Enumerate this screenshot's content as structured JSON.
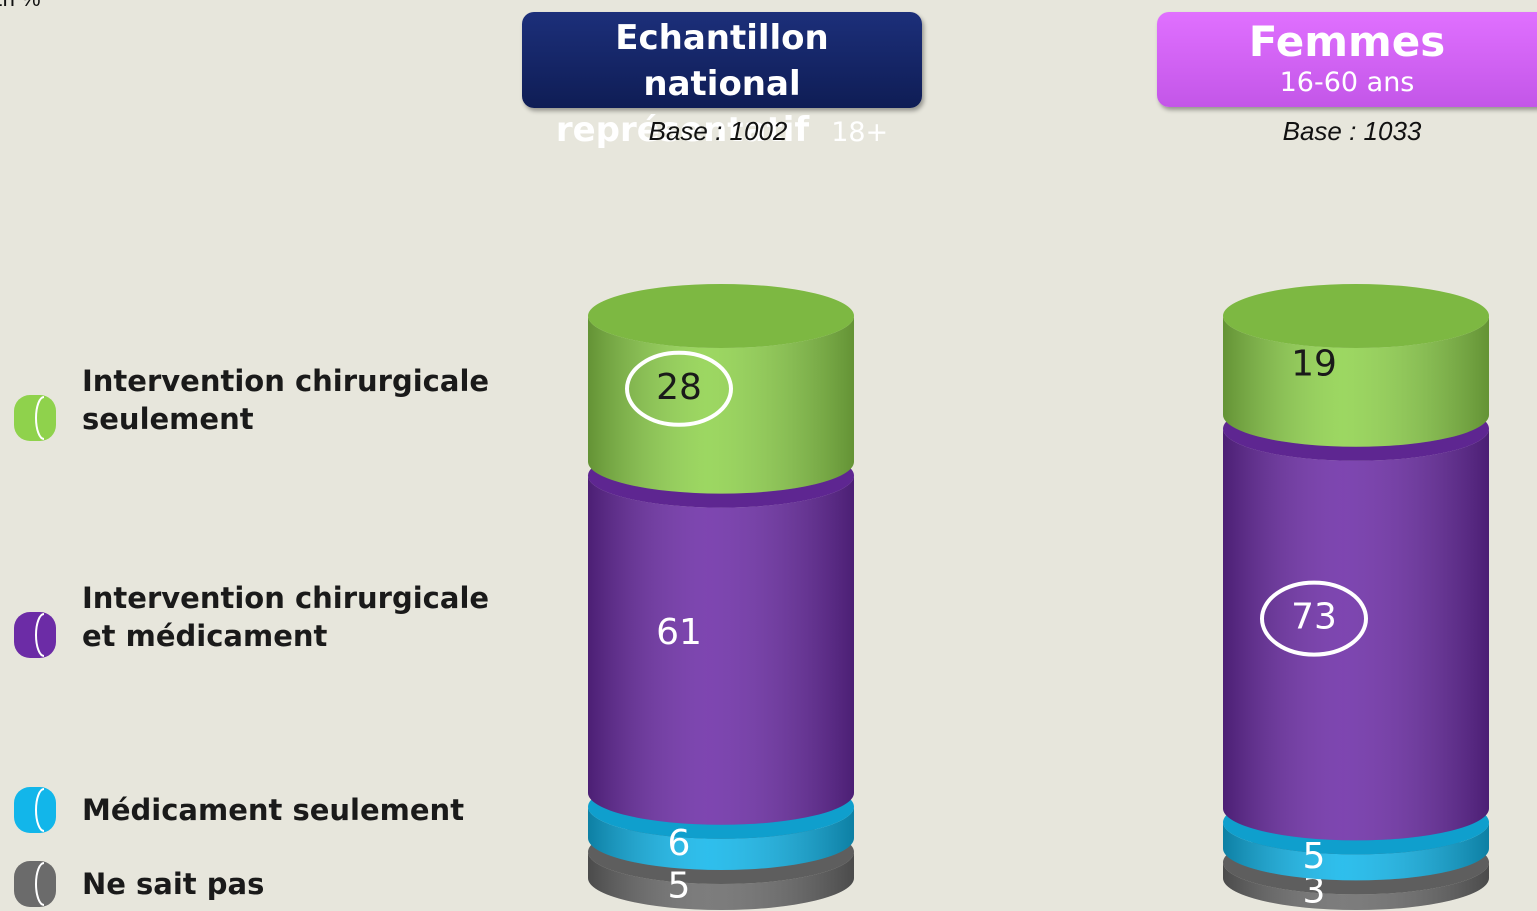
{
  "chart_data": {
    "type": "stacked-cylinder",
    "unit_note": "En %",
    "categories": [
      "Echantillon national représentatif",
      "Femmes"
    ],
    "category_notes": [
      "18+",
      "16-60 ans"
    ],
    "bases": [
      "Base : 1002",
      "Base : 1033"
    ],
    "ylim": [
      0,
      100
    ],
    "series": [
      {
        "name": "Ne sait pas",
        "color": "#6b6b6b",
        "label_color": "#ffffff",
        "circled": [
          false,
          false
        ],
        "values": [
          5,
          3
        ]
      },
      {
        "name": "Médicament seulement",
        "color": "#12b6ea",
        "label_color": "#ffffff",
        "circled": [
          false,
          false
        ],
        "values": [
          6,
          5
        ]
      },
      {
        "name": "Intervention chirurgicale et médicament",
        "color": "#6c2ca6",
        "label_color": "#ffffff",
        "circled": [
          false,
          true
        ],
        "values": [
          61,
          73
        ]
      },
      {
        "name": "Intervention chirurgicale seulement",
        "color": "#8fd24c",
        "label_color": "#1a1a1a",
        "circled": [
          true,
          false
        ],
        "values": [
          28,
          19
        ]
      }
    ]
  }
}
